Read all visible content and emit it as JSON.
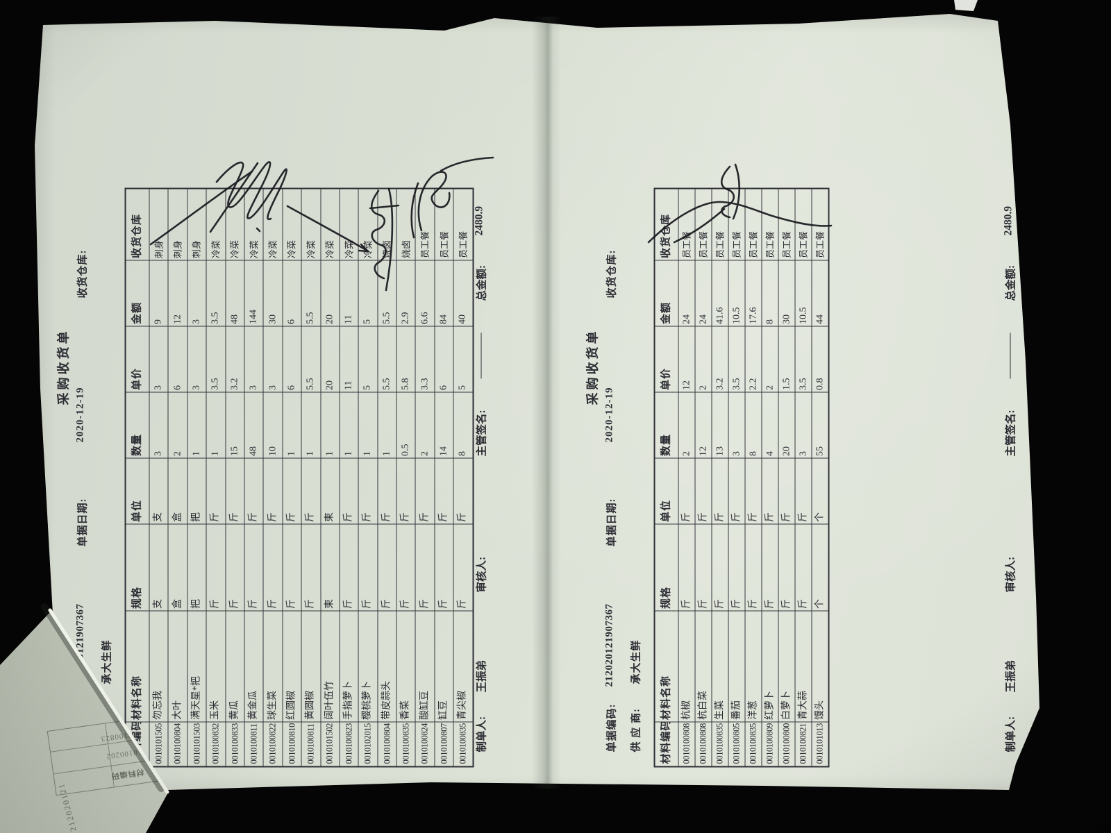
{
  "doc_left": {
    "title": "采购收货单",
    "fields": {
      "code_label": "单据编码:",
      "code": "212020121907367",
      "date_label": "单据日期:",
      "date": "2020-12-19",
      "warehouse_label": "收货仓库:",
      "supplier_label": "供 应 商:",
      "supplier": "承大生鲜"
    },
    "columns": [
      "材料编码",
      "材料名称",
      "规格",
      "单位",
      "数量",
      "单价",
      "金额",
      "收货仓库"
    ],
    "rows": [
      [
        "0010101505",
        "勿忘我",
        "支",
        "支",
        "3",
        "3",
        "9",
        "刺身"
      ],
      [
        "0010100804",
        "大叶",
        "盒",
        "盒",
        "2",
        "6",
        "12",
        "刺身"
      ],
      [
        "0010101503",
        "满天星*把",
        "把",
        "把",
        "1",
        "3",
        "3",
        "刺身"
      ],
      [
        "0010100832",
        "玉米",
        "斤",
        "斤",
        "1",
        "3.5",
        "3.5",
        "冷菜"
      ],
      [
        "0010100833",
        "黄瓜",
        "斤",
        "斤",
        "15",
        "3.2",
        "48",
        "冷菜"
      ],
      [
        "0010100811",
        "黄金瓜",
        "斤",
        "斤",
        "48",
        "3",
        "144",
        "冷菜"
      ],
      [
        "0010100822",
        "球生菜",
        "斤",
        "斤",
        "10",
        "3",
        "30",
        "冷菜"
      ],
      [
        "0010100810",
        "红圆椒",
        "斤",
        "斤",
        "1",
        "6",
        "6",
        "冷菜"
      ],
      [
        "0010100811",
        "黄圆椒",
        "斤",
        "斤",
        "1",
        "5.5",
        "5.5",
        "冷菜"
      ],
      [
        "0010101502",
        "阔叶伍竹",
        "束",
        "束",
        "1",
        "20",
        "20",
        "冷菜"
      ],
      [
        "0010100823",
        "手指萝卜",
        "斤",
        "斤",
        "1",
        "11",
        "11",
        "冷菜"
      ],
      [
        "0010102015",
        "樱桃萝卜",
        "斤",
        "斤",
        "1",
        "5",
        "5",
        "冷菜"
      ],
      [
        "0010100804",
        "带皮蒜头",
        "斤",
        "斤",
        "1",
        "5.5",
        "5.5",
        "烧卤"
      ],
      [
        "0010100835",
        "香菜",
        "斤",
        "斤",
        "0.5",
        "5.8",
        "2.9",
        "烧卤"
      ],
      [
        "0010100824",
        "酸缸豆",
        "斤",
        "斤",
        "2",
        "3.3",
        "6.6",
        "员工餐"
      ],
      [
        "0010100807",
        "缸豆",
        "斤",
        "斤",
        "14",
        "6",
        "84",
        "员工餐"
      ],
      [
        "0010100835",
        "青尖椒",
        "斤",
        "斤",
        "8",
        "5",
        "40",
        "员工餐"
      ]
    ],
    "footer": {
      "maker_label": "制单人:",
      "maker": "王振弟",
      "checker_label": "审核人:",
      "manager_label": "主管签名:",
      "total_label": "总金额:",
      "total": "2480.9"
    }
  },
  "doc_right": {
    "title": "采购收货单",
    "fields": {
      "code_label": "单据编码:",
      "code": "212020121907367",
      "date_label": "单据日期:",
      "date": "2020-12-19",
      "warehouse_label": "收货仓库:",
      "supplier_label": "供 应 商:",
      "supplier": "承大生鲜"
    },
    "columns": [
      "材料编码",
      "材料名称",
      "规格",
      "单位",
      "数量",
      "单价",
      "金额",
      "收货仓库"
    ],
    "rows": [
      [
        "0010100808",
        "杭椒",
        "斤",
        "斤",
        "2",
        "12",
        "24",
        "员工餐"
      ],
      [
        "0010100808",
        "杭白菜",
        "斤",
        "斤",
        "12",
        "2",
        "24",
        "员工餐"
      ],
      [
        "0010100835",
        "生菜",
        "斤",
        "斤",
        "13",
        "3.2",
        "41.6",
        "员工餐"
      ],
      [
        "0010100805",
        "番茄",
        "斤",
        "斤",
        "3",
        "3.5",
        "10.5",
        "员工餐"
      ],
      [
        "0010100835",
        "洋葱",
        "斤",
        "斤",
        "8",
        "2.2",
        "17.6",
        "员工餐"
      ],
      [
        "0010100809",
        "红萝卜",
        "斤",
        "斤",
        "4",
        "2",
        "8",
        "员工餐"
      ],
      [
        "0010100800",
        "白萝卜",
        "斤",
        "斤",
        "20",
        "1.5",
        "30",
        "员工餐"
      ],
      [
        "0010100821",
        "青大蒜",
        "斤",
        "斤",
        "3",
        "3.5",
        "10.5",
        "员工餐"
      ],
      [
        "0010101013",
        "馒头",
        "个",
        "个",
        "55",
        "0.8",
        "44",
        "员工餐"
      ]
    ],
    "footer": {
      "maker_label": "制单人:",
      "maker": "王振弟",
      "checker_label": "审核人:",
      "manager_label": "主管签名:",
      "total_label": "总金额:",
      "total": "2480.9"
    }
  },
  "under_sheet": {
    "fragments": [
      "212020121",
      "材料编码",
      "0010100202",
      "0010100823"
    ]
  },
  "colors": {
    "paper": "#dde2d7",
    "ink_print": "#2c2c33",
    "ink_pen": "#14141a",
    "background": "#050505"
  }
}
